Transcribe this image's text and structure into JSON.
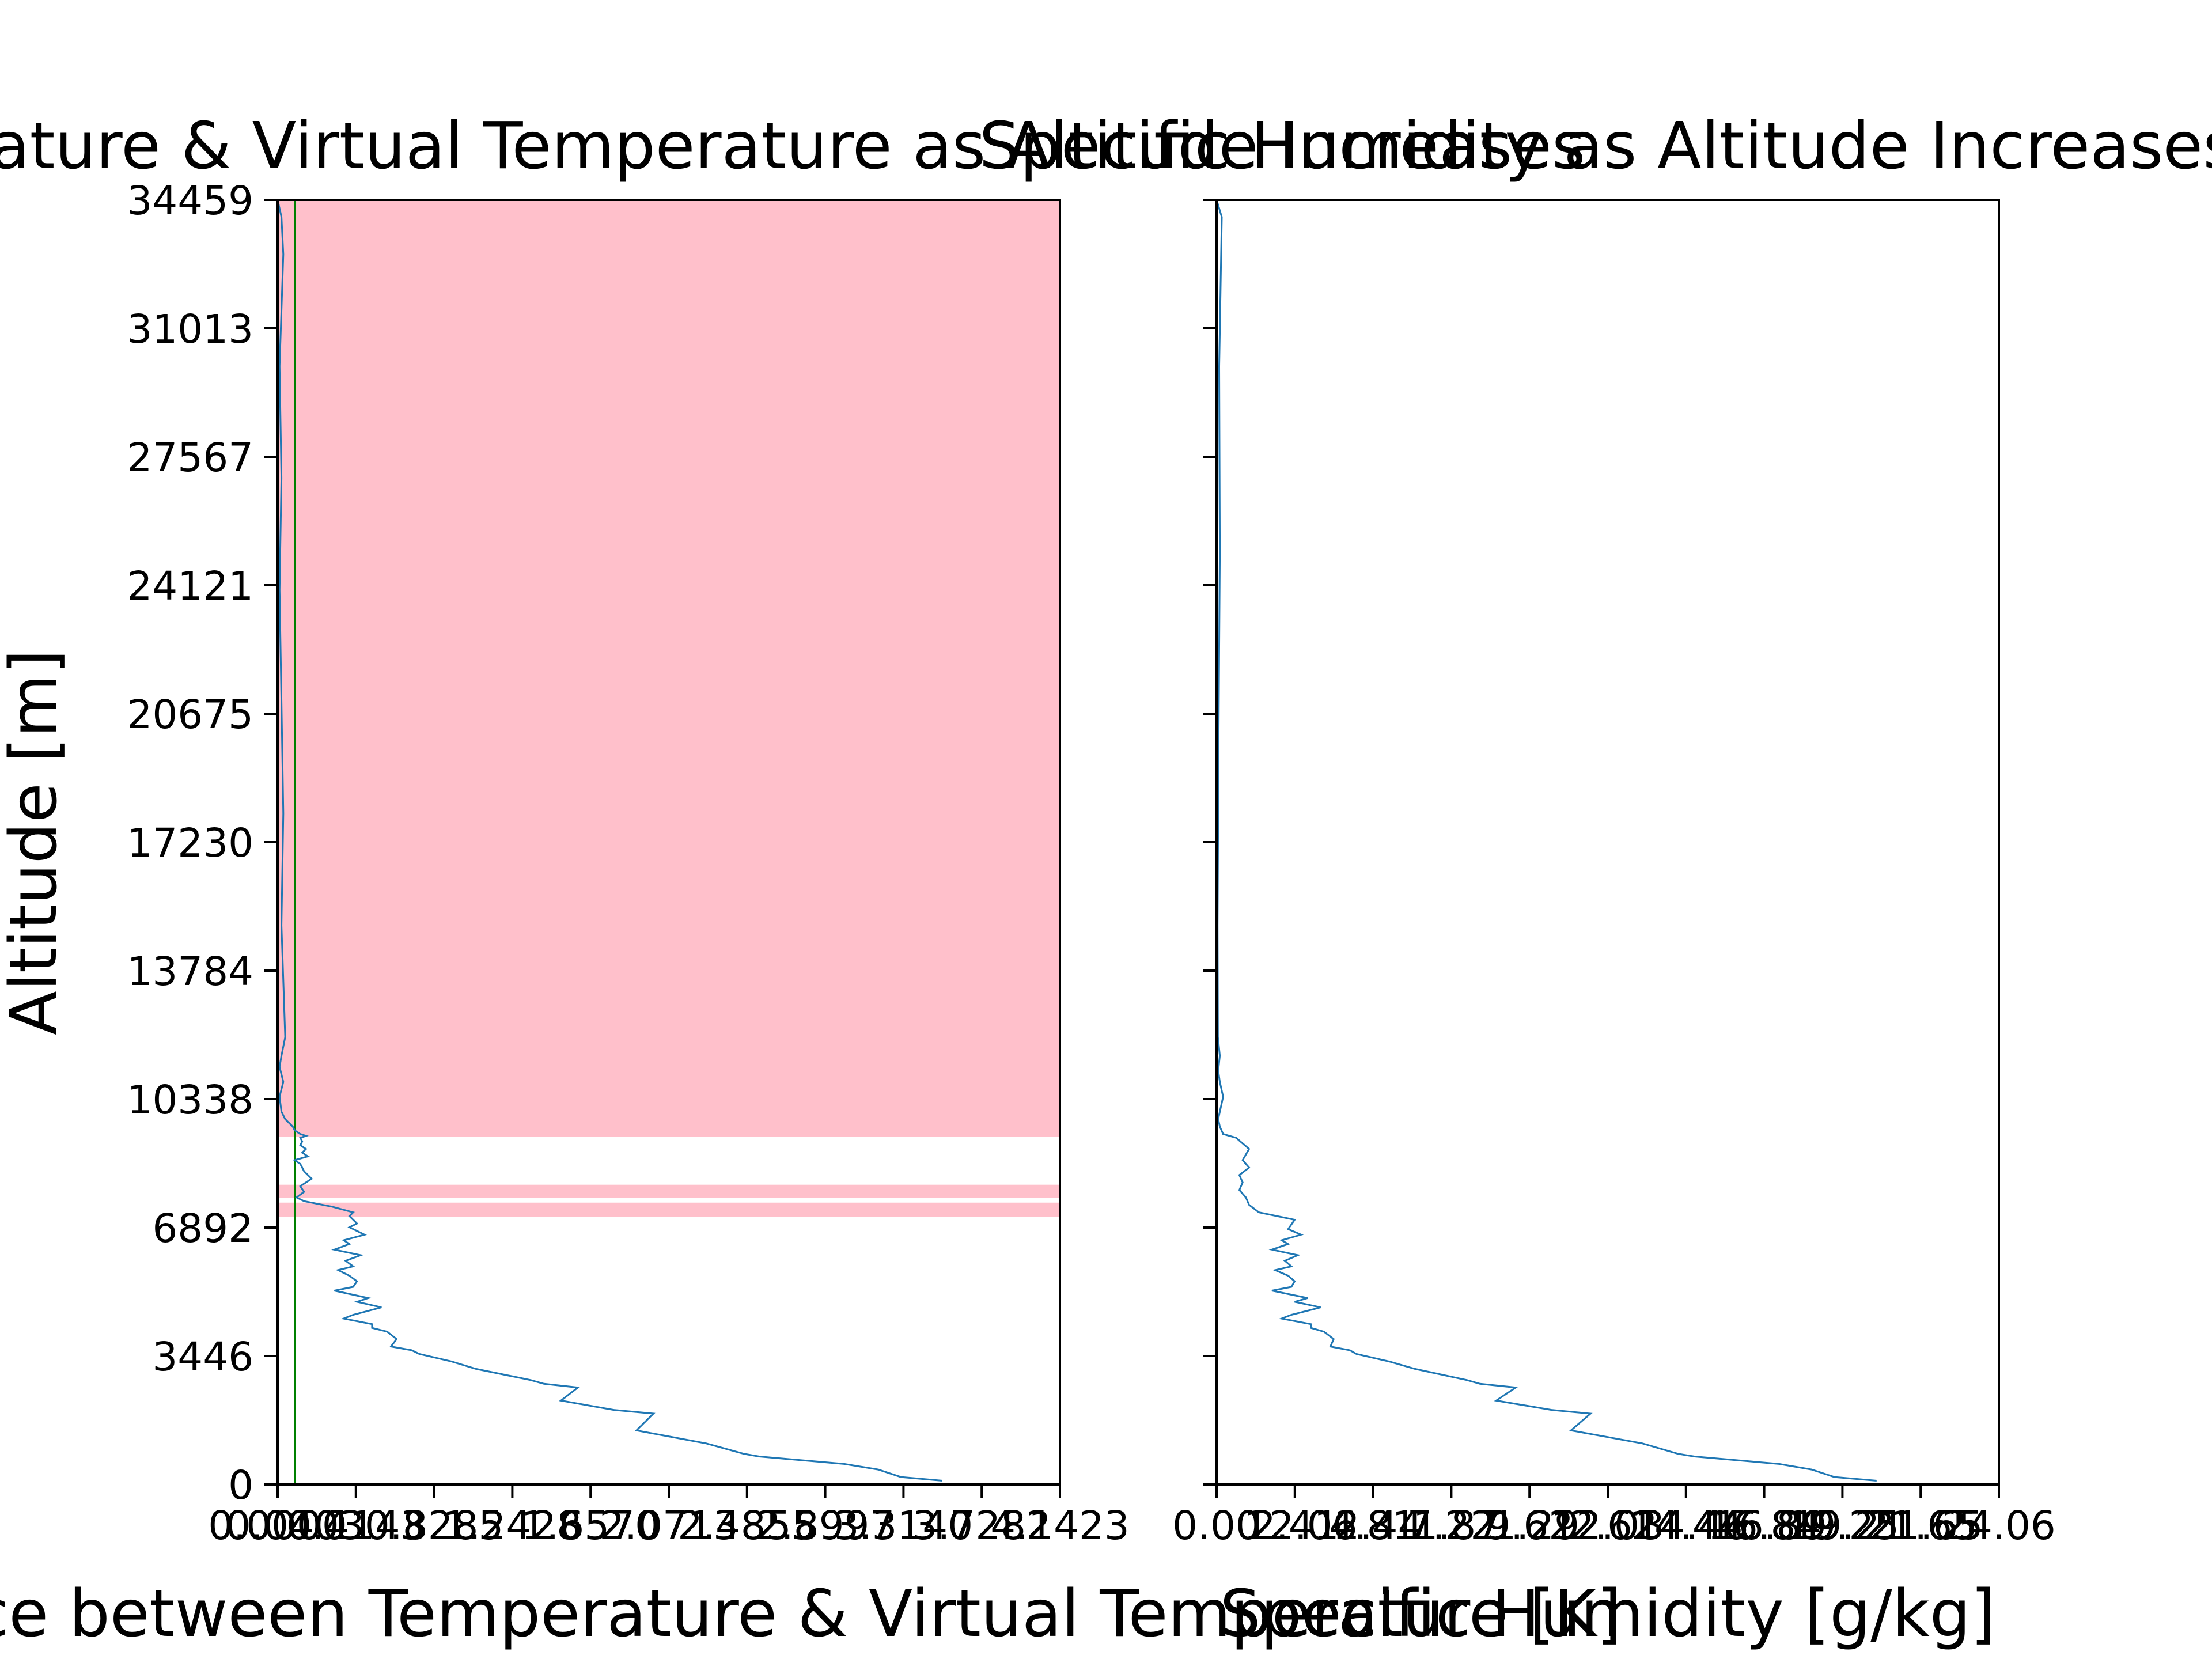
{
  "colors": {
    "line": "#1f77b4",
    "shade": "#ffc0cb",
    "vline": "#008000",
    "axis": "#000000",
    "background": "#ffffff"
  },
  "chart_data": [
    {
      "type": "line",
      "title": "Temperature & Virtual Temperature as Altitude Increases",
      "xlabel": "Difference between Temperature & Virtual Temperature [K]",
      "ylabel": "Altitude [m]",
      "xlim": [
        0.0,
        4.1423
      ],
      "ylim": [
        0,
        34459
      ],
      "xticks": [
        "0.0000",
        "0.0403",
        "0.4143",
        "0.8285",
        "1.2428",
        "1.6570",
        "2.0713",
        "2.4855",
        "2.8997",
        "3.3140",
        "3.7282",
        "4.1423"
      ],
      "yticks": [
        "0",
        "3446",
        "6892",
        "10338",
        "13784",
        "17230",
        "20675",
        "24121",
        "27567",
        "31013",
        "34459"
      ],
      "threshold_x": 0.0903,
      "shaded_bands": [
        [
          7180,
          7560
        ],
        [
          7680,
          8040
        ],
        [
          9320,
          34459
        ]
      ],
      "series": [
        {
          "x": [
            3.52,
            3.3,
            3.18,
            3.0,
            2.55,
            2.47,
            2.27,
            1.9,
            1.99,
            1.78,
            1.5,
            1.59,
            1.41,
            1.34,
            1.05,
            0.92,
            0.75,
            0.71,
            0.6,
            0.63,
            0.58,
            0.5,
            0.5,
            0.35,
            0.4,
            0.55,
            0.42,
            0.48,
            0.3,
            0.4,
            0.42,
            0.38,
            0.32,
            0.4,
            0.36,
            0.44,
            0.3,
            0.38,
            0.35,
            0.46,
            0.38,
            0.42,
            0.38,
            0.4,
            0.29,
            0.14,
            0.1,
            0.14,
            0.12,
            0.18,
            0.14,
            0.12,
            0.09,
            0.16,
            0.13,
            0.15,
            0.12,
            0.13,
            0.12,
            0.15,
            0.12,
            0.09,
            0.08,
            0.04,
            0.02,
            0.01,
            0.03,
            0.02,
            0.01,
            0.02,
            0.04,
            0.02,
            0.03,
            0.02,
            0.01,
            0.02,
            0.01,
            0.02,
            0.03,
            0.02,
            0.0
          ],
          "y": [
            100,
            200,
            400,
            550,
            750,
            820,
            1100,
            1450,
            1900,
            2000,
            2250,
            2600,
            2700,
            2800,
            3100,
            3300,
            3500,
            3600,
            3700,
            3900,
            4100,
            4200,
            4300,
            4450,
            4550,
            4750,
            4900,
            5000,
            5200,
            5300,
            5450,
            5600,
            5750,
            5850,
            6000,
            6150,
            6300,
            6450,
            6550,
            6700,
            6900,
            7000,
            7200,
            7300,
            7450,
            7600,
            7700,
            7850,
            8000,
            8200,
            8400,
            8600,
            8700,
            8800,
            8900,
            9000,
            9100,
            9200,
            9300,
            9350,
            9400,
            9500,
            9600,
            9800,
            10000,
            10400,
            10800,
            11000,
            11200,
            11500,
            12000,
            15000,
            18000,
            21000,
            24000,
            27000,
            30000,
            31500,
            33000,
            34000,
            34459
          ]
        }
      ]
    },
    {
      "type": "line",
      "title": "Specific Humidity as Altitude Increases",
      "xlabel": "Specific Humidity [g/kg]",
      "ylabel": "",
      "xlim": [
        0.0,
        24.06
      ],
      "ylim": [
        0,
        34459
      ],
      "xticks": [
        "0.00",
        "2.41",
        "4.81",
        "7.22",
        "9.62",
        "12.03",
        "14.44",
        "16.84",
        "19.25",
        "21.65",
        "24.06",
        "12.06",
        "2.44",
        "1.87",
        "1.29",
        "2.62",
        "14.46",
        "16.89",
        "19.21",
        "21.65"
      ],
      "series": [
        {
          "x": [
            20.3,
            19.0,
            18.3,
            17.3,
            14.7,
            14.2,
            13.1,
            10.9,
            11.5,
            10.3,
            8.6,
            9.2,
            8.1,
            7.7,
            6.1,
            5.3,
            4.3,
            4.1,
            3.5,
            3.6,
            3.3,
            2.9,
            2.9,
            2.0,
            2.3,
            3.2,
            2.4,
            2.8,
            1.7,
            2.3,
            2.4,
            2.2,
            1.8,
            2.3,
            2.1,
            2.5,
            1.7,
            2.2,
            2.0,
            2.6,
            2.2,
            2.4,
            1.3,
            1.0,
            0.9,
            0.7,
            0.8,
            0.7,
            1.0,
            0.8,
            1.0,
            0.6,
            0.2,
            0.1,
            0.05,
            0.2,
            0.1,
            0.05,
            0.1,
            0.04,
            0.03,
            0.06,
            0.1,
            0.08,
            0.12,
            0.16,
            0.0
          ],
          "y": [
            100,
            200,
            400,
            550,
            750,
            820,
            1100,
            1450,
            1900,
            2000,
            2250,
            2600,
            2700,
            2800,
            3100,
            3300,
            3500,
            3600,
            3700,
            3900,
            4100,
            4200,
            4300,
            4450,
            4550,
            4750,
            4900,
            5000,
            5200,
            5300,
            5450,
            5600,
            5750,
            5850,
            6000,
            6150,
            6300,
            6450,
            6550,
            6700,
            6850,
            7100,
            7300,
            7500,
            7700,
            7900,
            8100,
            8300,
            8500,
            8700,
            9000,
            9300,
            9400,
            9600,
            9800,
            10400,
            10800,
            11100,
            11500,
            12000,
            15000,
            20000,
            25000,
            30000,
            32000,
            34000,
            34459
          ]
        }
      ]
    }
  ]
}
